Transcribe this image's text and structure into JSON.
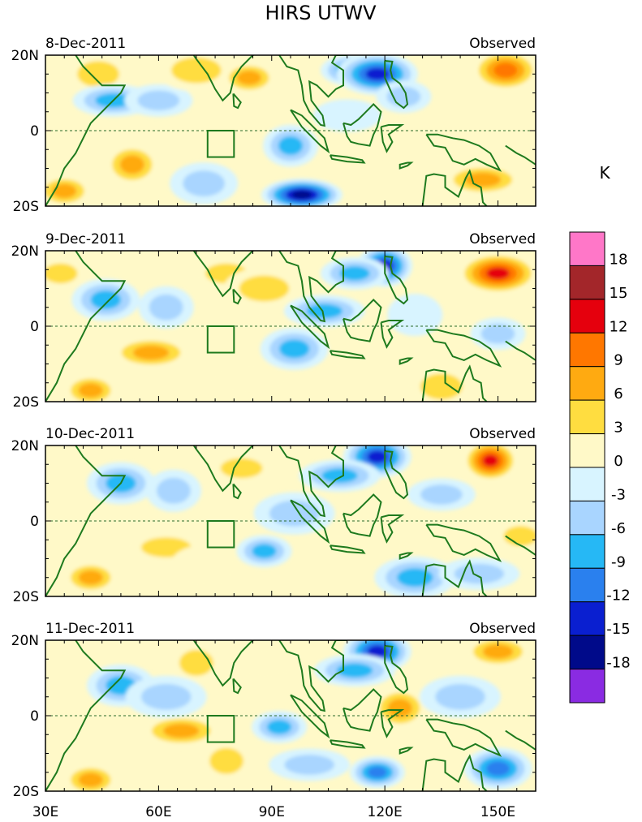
{
  "chart_data": {
    "type": "contour-map",
    "title": "HIRS UTWV",
    "unit_label": "K",
    "longitude_ticks": [
      "30E",
      "60E",
      "90E",
      "120E",
      "150E"
    ],
    "longitude_values": [
      30,
      60,
      90,
      120,
      150
    ],
    "latitude_ticks": [
      "20N",
      "0",
      "20S"
    ],
    "latitude_values": [
      20,
      0,
      -20
    ],
    "lon_range": [
      30,
      160
    ],
    "lat_range": [
      -20,
      20
    ],
    "panels": [
      {
        "date": "8-Dec-2011",
        "label": "Observed"
      },
      {
        "date": "9-Dec-2011",
        "label": "Observed"
      },
      {
        "date": "10-Dec-2011",
        "label": "Observed"
      },
      {
        "date": "11-Dec-2011",
        "label": "Observed"
      }
    ],
    "colorbar": {
      "levels": [
        "18",
        "15",
        "12",
        "9",
        "6",
        "3",
        "0",
        "-3",
        "-6",
        "-9",
        "-12",
        "-15",
        "-18"
      ],
      "colors": [
        "#ff77c8",
        "#a3262a",
        "#e5000d",
        "#ff7700",
        "#ffaa11",
        "#ffdd40",
        "#fff9c8",
        "#d8f4ff",
        "#a9d5ff",
        "#26b8f5",
        "#2a80ee",
        "#0a1fd0",
        "#000a8a",
        "#8a2be2"
      ]
    },
    "box_region": {
      "lon": [
        73,
        80
      ],
      "lat": [
        -7,
        0
      ]
    },
    "features": {
      "panel1": [
        {
          "lon": 35,
          "lat": -16,
          "v": 10
        },
        {
          "lon": 44,
          "lat": 15,
          "v": 6
        },
        {
          "lon": 48,
          "lat": 8,
          "v": -9
        },
        {
          "lon": 53,
          "lat": -9,
          "v": 9
        },
        {
          "lon": 60,
          "lat": 8,
          "v": -6
        },
        {
          "lon": 70,
          "lat": 16,
          "v": 6
        },
        {
          "lon": 84,
          "lat": 14,
          "v": 9
        },
        {
          "lon": 72,
          "lat": -14,
          "v": -6
        },
        {
          "lon": 98,
          "lat": -17,
          "v": -18
        },
        {
          "lon": 95,
          "lat": -4,
          "v": -9
        },
        {
          "lon": 112,
          "lat": 16,
          "v": -12
        },
        {
          "lon": 118,
          "lat": 15,
          "v": -15
        },
        {
          "lon": 125,
          "lat": 9,
          "v": -6
        },
        {
          "lon": 152,
          "lat": 16,
          "v": 12
        },
        {
          "lon": 146,
          "lat": -13,
          "v": 9
        },
        {
          "lon": 128,
          "lat": -8,
          "v": 3
        },
        {
          "lon": 110,
          "lat": 4,
          "v": -3
        }
      ],
      "panel2": [
        {
          "lon": 34,
          "lat": 14,
          "v": 6
        },
        {
          "lon": 46,
          "lat": 7,
          "v": -9
        },
        {
          "lon": 58,
          "lat": -7,
          "v": 9
        },
        {
          "lon": 62,
          "lat": 5,
          "v": -6
        },
        {
          "lon": 78,
          "lat": 14,
          "v": 6
        },
        {
          "lon": 88,
          "lat": 10,
          "v": 6
        },
        {
          "lon": 42,
          "lat": -17,
          "v": 9
        },
        {
          "lon": 96,
          "lat": -6,
          "v": -9
        },
        {
          "lon": 104,
          "lat": 4,
          "v": -9
        },
        {
          "lon": 120,
          "lat": 16,
          "v": -15
        },
        {
          "lon": 112,
          "lat": 14,
          "v": -9
        },
        {
          "lon": 150,
          "lat": 14,
          "v": 15
        },
        {
          "lon": 150,
          "lat": -2,
          "v": -6
        },
        {
          "lon": 135,
          "lat": -16,
          "v": 6
        },
        {
          "lon": 84,
          "lat": -14,
          "v": 3
        },
        {
          "lon": 128,
          "lat": 3,
          "v": -3
        }
      ],
      "panel3": [
        {
          "lon": 42,
          "lat": -15,
          "v": 9
        },
        {
          "lon": 50,
          "lat": 10,
          "v": -9
        },
        {
          "lon": 62,
          "lat": -7,
          "v": 6
        },
        {
          "lon": 64,
          "lat": 8,
          "v": -6
        },
        {
          "lon": 82,
          "lat": 14,
          "v": 6
        },
        {
          "lon": 96,
          "lat": 2,
          "v": -6
        },
        {
          "lon": 88,
          "lat": -8,
          "v": -9
        },
        {
          "lon": 118,
          "lat": 17,
          "v": -15
        },
        {
          "lon": 108,
          "lat": 12,
          "v": -9
        },
        {
          "lon": 148,
          "lat": 16,
          "v": 15
        },
        {
          "lon": 135,
          "lat": 7,
          "v": -6
        },
        {
          "lon": 128,
          "lat": -15,
          "v": -9
        },
        {
          "lon": 156,
          "lat": -4,
          "v": 6
        },
        {
          "lon": 72,
          "lat": -12,
          "v": 3
        },
        {
          "lon": 145,
          "lat": -14,
          "v": -6
        }
      ],
      "panel4": [
        {
          "lon": 42,
          "lat": -17,
          "v": 9
        },
        {
          "lon": 50,
          "lat": 8,
          "v": -9
        },
        {
          "lon": 66,
          "lat": -4,
          "v": 9
        },
        {
          "lon": 70,
          "lat": 14,
          "v": 6
        },
        {
          "lon": 88,
          "lat": 14,
          "v": 3
        },
        {
          "lon": 62,
          "lat": 5,
          "v": -6
        },
        {
          "lon": 92,
          "lat": -3,
          "v": -9
        },
        {
          "lon": 118,
          "lat": 17,
          "v": -15
        },
        {
          "lon": 112,
          "lat": 12,
          "v": -9
        },
        {
          "lon": 124,
          "lat": 2,
          "v": 9
        },
        {
          "lon": 150,
          "lat": 17,
          "v": 9
        },
        {
          "lon": 140,
          "lat": 5,
          "v": -6
        },
        {
          "lon": 118,
          "lat": -15,
          "v": -12
        },
        {
          "lon": 150,
          "lat": -14,
          "v": -12
        },
        {
          "lon": 100,
          "lat": -13,
          "v": -6
        },
        {
          "lon": 78,
          "lat": -12,
          "v": 6
        },
        {
          "lon": 130,
          "lat": -6,
          "v": 3
        }
      ]
    }
  }
}
